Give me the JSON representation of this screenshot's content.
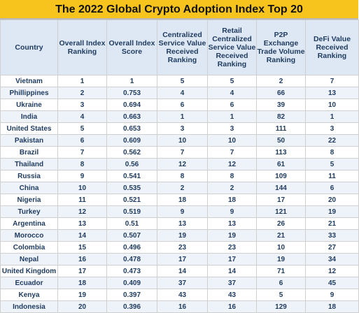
{
  "title": "The 2022 Global Crypto Adoption Index Top 20",
  "colors": {
    "title_background": "#f7c41e",
    "header_background": "#dde8f4",
    "text": "#1e3a5f"
  },
  "columns": [
    "Country",
    "Overall Index Ranking",
    "Overall Index Score",
    "Centralized Service Value Received Ranking",
    "Retail Centralized Service Value Received Ranking",
    "P2P Exchange Trade Volume Ranking",
    "DeFi Value Received Ranking"
  ],
  "rows": [
    [
      "Vietnam",
      "1",
      "1",
      "5",
      "5",
      "2",
      "7"
    ],
    [
      "Phillippines",
      "2",
      "0.753",
      "4",
      "4",
      "66",
      "13"
    ],
    [
      "Ukraine",
      "3",
      "0.694",
      "6",
      "6",
      "39",
      "10"
    ],
    [
      "India",
      "4",
      "0.663",
      "1",
      "1",
      "82",
      "1"
    ],
    [
      "United States",
      "5",
      "0.653",
      "3",
      "3",
      "111",
      "3"
    ],
    [
      "Pakistan",
      "6",
      "0.609",
      "10",
      "10",
      "50",
      "22"
    ],
    [
      "Brazil",
      "7",
      "0.562",
      "7",
      "7",
      "113",
      "8"
    ],
    [
      "Thailand",
      "8",
      "0.56",
      "12",
      "12",
      "61",
      "5"
    ],
    [
      "Russia",
      "9",
      "0.541",
      "8",
      "8",
      "109",
      "11"
    ],
    [
      "China",
      "10",
      "0.535",
      "2",
      "2",
      "144",
      "6"
    ],
    [
      "Nigeria",
      "11",
      "0.521",
      "18",
      "18",
      "17",
      "20"
    ],
    [
      "Turkey",
      "12",
      "0.519",
      "9",
      "9",
      "121",
      "19"
    ],
    [
      "Argentina",
      "13",
      "0.51",
      "13",
      "13",
      "26",
      "21"
    ],
    [
      "Morocco",
      "14",
      "0.507",
      "19",
      "19",
      "21",
      "33"
    ],
    [
      "Colombia",
      "15",
      "0.496",
      "23",
      "23",
      "10",
      "27"
    ],
    [
      "Nepal",
      "16",
      "0.478",
      "17",
      "17",
      "19",
      "34"
    ],
    [
      "United Kingdom",
      "17",
      "0.473",
      "14",
      "14",
      "71",
      "12"
    ],
    [
      "Ecuador",
      "18",
      "0.409",
      "37",
      "37",
      "6",
      "45"
    ],
    [
      "Kenya",
      "19",
      "0.397",
      "43",
      "43",
      "5",
      "9"
    ],
    [
      "Indonesia",
      "20",
      "0.396",
      "16",
      "16",
      "129",
      "18"
    ]
  ]
}
